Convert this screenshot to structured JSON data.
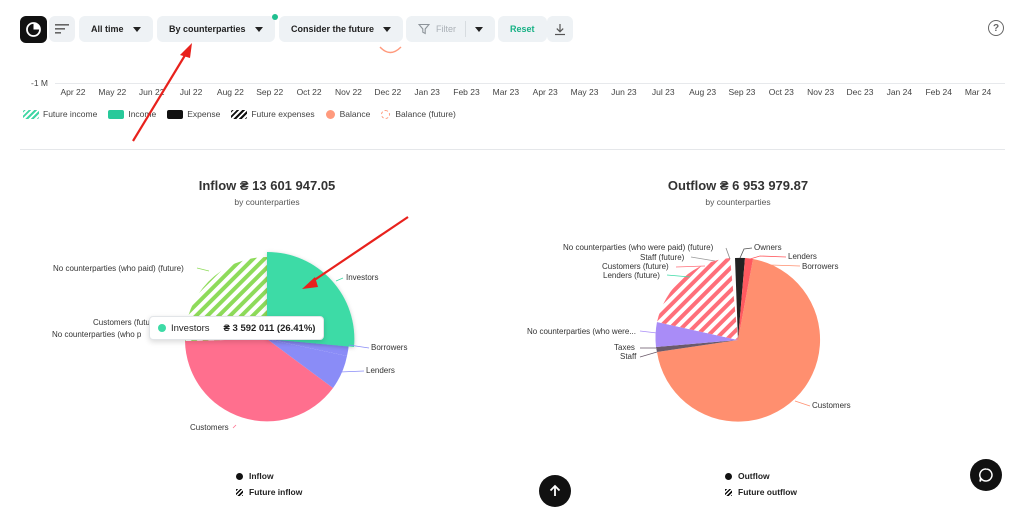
{
  "toolbar": {
    "period": "All time",
    "grouping": "By counterparties",
    "future": "Consider the future",
    "filter": "Filter",
    "reset": "Reset"
  },
  "icons": {
    "logo": "pie-clock-icon",
    "menu": "sort-lines-icon",
    "filter": "funnel-icon",
    "download": "download-icon",
    "help": "help-icon",
    "scroll_top": "arrow-up-icon",
    "chat": "chat-bubble-icon"
  },
  "help_label": "?",
  "timeline": {
    "y_label": "-1 M",
    "months": [
      "Apr 22",
      "May 22",
      "Jun 22",
      "Jul 22",
      "Aug 22",
      "Sep 22",
      "Oct 22",
      "Nov 22",
      "Dec 22",
      "Jan 23",
      "Feb 23",
      "Mar 23",
      "Apr 23",
      "May 23",
      "Jun 23",
      "Jul 23",
      "Aug 23",
      "Sep 23",
      "Oct 23",
      "Nov 23",
      "Dec 23",
      "Jan 24",
      "Feb 24",
      "Mar 24"
    ]
  },
  "legend": {
    "future_income": "Future income",
    "income": "Income",
    "expense": "Expense",
    "future_expenses": "Future expenses",
    "balance": "Balance",
    "balance_future": "Balance (future)"
  },
  "inflow": {
    "title": "Inflow ₴ 13 601 947.05",
    "subtitle": "by counterparties",
    "labels": {
      "investors": "Investors",
      "borrowers": "Borrowers",
      "lenders": "Lenders",
      "customers": "Customers",
      "no_cp_paid_future": "No counterparties (who paid) (future)",
      "customers_future_clipped": "Customers (futu",
      "no_cp_paid_clipped": "No counterparties (who p"
    },
    "tooltip": {
      "name": "Investors",
      "value": "₴ 3 592 011 (26.41%)"
    },
    "legend": {
      "inflow": "Inflow",
      "future_inflow": "Future inflow"
    }
  },
  "outflow": {
    "title": "Outflow ₴ 6 953 979.87",
    "subtitle": "by counterparties",
    "labels": {
      "owners": "Owners",
      "lenders": "Lenders",
      "borrowers": "Borrowers",
      "customers": "Customers",
      "no_cp_were_paid_future": "No counterparties (who were paid) (future)",
      "staff_future": "Staff (future)",
      "customers_future": "Customers (future)",
      "lenders_future": "Lenders (future)",
      "no_cp_were_clipped": "No counterparties (who were...",
      "taxes": "Taxes",
      "staff": "Staff"
    },
    "legend": {
      "outflow": "Outflow",
      "future_outflow": "Future outflow"
    }
  },
  "colors": {
    "income": "#28c99a",
    "future_income": "#3fd6a4",
    "investors": "#3ddba6",
    "borrowers": "#8a8cf7",
    "customers_in": "#ff6f8e",
    "future_inflow_stripes": "#8edb5a",
    "customers_out": "#ff8f6f",
    "annotation": "#e8211c"
  }
}
